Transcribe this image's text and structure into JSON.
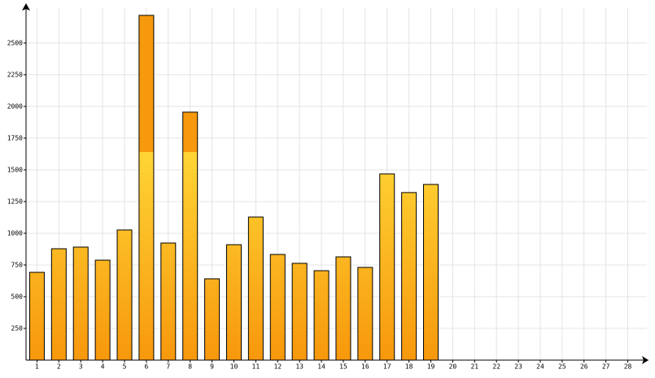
{
  "chart_data": {
    "type": "bar",
    "categories": [
      "1",
      "2",
      "3",
      "4",
      "5",
      "6",
      "7",
      "8",
      "9",
      "10",
      "11",
      "12",
      "13",
      "14",
      "15",
      "16",
      "17",
      "18",
      "19",
      "20",
      "21",
      "22",
      "23",
      "24",
      "25",
      "26",
      "27",
      "28"
    ],
    "values": [
      692,
      878,
      891,
      788,
      1026,
      2718,
      923,
      1955,
      641,
      910,
      1128,
      833,
      763,
      705,
      814,
      731,
      1468,
      1321,
      1385,
      null,
      null,
      null,
      null,
      null,
      null,
      null,
      null,
      null
    ],
    "color": "#f7a510",
    "ylim": [
      0,
      2775
    ],
    "yticks": [
      250,
      500,
      750,
      1000,
      1250,
      1500,
      1750,
      2000,
      2250,
      2500
    ],
    "grid": true
  }
}
